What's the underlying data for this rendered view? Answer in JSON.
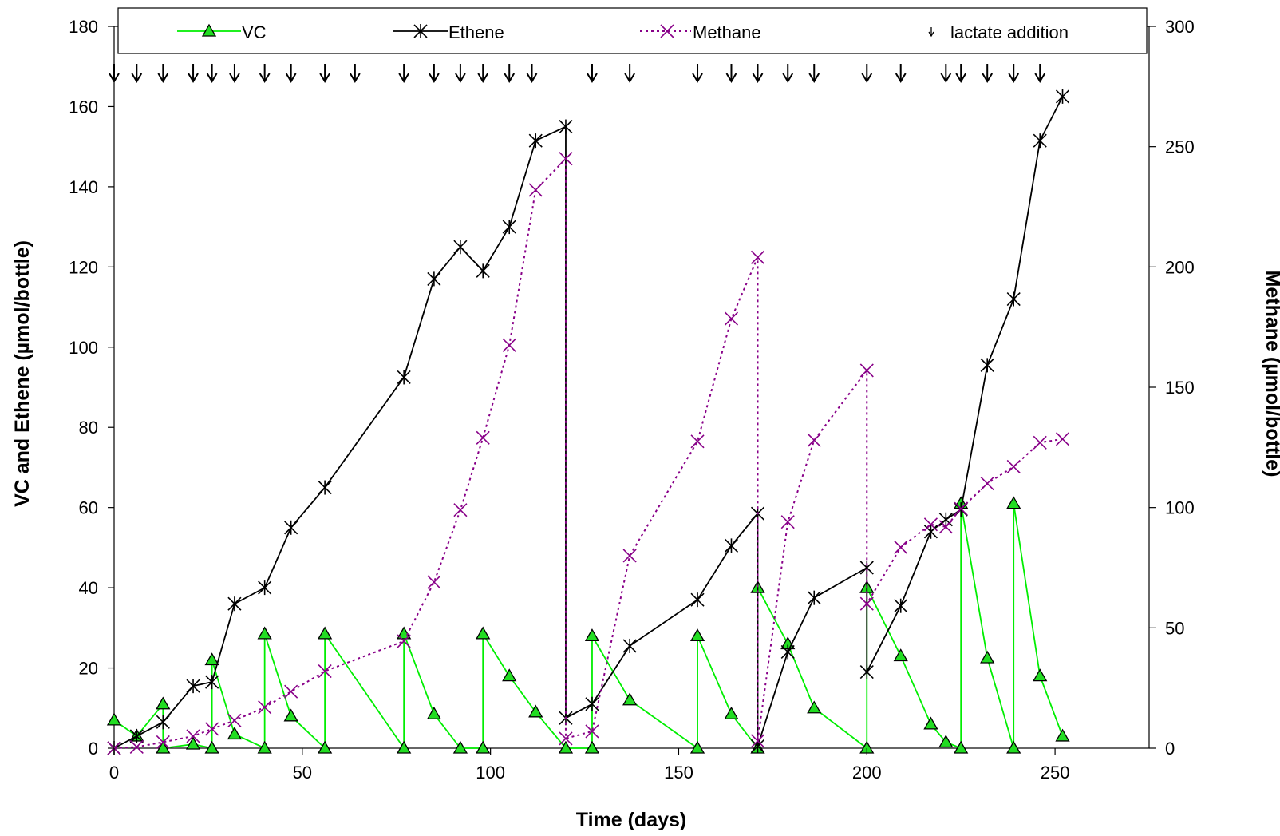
{
  "chart_data": {
    "type": "line",
    "xlabel": "Time (days)",
    "ylabel": "VC and Ethene (µmol/bottle)",
    "y2label": "Methane (µmol/bottle)",
    "xlim": [
      0,
      275
    ],
    "ylim": [
      0,
      180
    ],
    "y2lim": [
      0,
      300
    ],
    "xticks": [
      0,
      50,
      100,
      150,
      200,
      250
    ],
    "yticks": [
      0,
      20,
      40,
      60,
      80,
      100,
      120,
      140,
      160,
      180
    ],
    "y2ticks": [
      0,
      50,
      100,
      150,
      200,
      250,
      300
    ],
    "grid": false,
    "legend_position": "top",
    "series": [
      {
        "name": "VC",
        "axis": "left",
        "color": "#00ee00",
        "marker": "triangle",
        "x": [
          0,
          6,
          13,
          13,
          21,
          26,
          26,
          32,
          40,
          40,
          47,
          56,
          56,
          77,
          77,
          85,
          92,
          98,
          98,
          105,
          112,
          120,
          127,
          127,
          137,
          155,
          155,
          164,
          171,
          171,
          179,
          186,
          200,
          200,
          209,
          217,
          221,
          225,
          225,
          232,
          239,
          239,
          246,
          252
        ],
        "y": [
          7,
          3,
          11,
          0,
          1,
          0,
          22,
          3.5,
          0,
          28.5,
          8,
          0,
          28.5,
          0,
          28.5,
          8.5,
          0,
          0,
          28.5,
          18,
          9,
          0,
          0,
          28,
          12,
          0,
          28,
          8.5,
          0,
          40,
          26,
          10,
          0,
          40,
          23,
          6,
          1.5,
          0,
          61,
          22.5,
          0,
          61,
          18,
          3
        ]
      },
      {
        "name": "Ethene",
        "axis": "left",
        "color": "#000000",
        "marker": "star",
        "x": [
          0,
          6,
          13,
          21,
          26,
          32,
          40,
          47,
          56,
          77,
          85,
          92,
          98,
          105,
          112,
          120,
          120,
          127,
          137,
          155,
          164,
          171,
          171,
          179,
          186,
          200,
          200,
          209,
          217,
          221,
          225,
          232,
          239,
          246,
          252
        ],
        "y": [
          0,
          3,
          6.5,
          15.5,
          16.5,
          36,
          40,
          55,
          65,
          92.5,
          117,
          125,
          119,
          130,
          151.5,
          155,
          7.5,
          11,
          25.5,
          37,
          50.5,
          58.5,
          0.5,
          24,
          37.5,
          45,
          19,
          35.5,
          54,
          57,
          59.5,
          95.5,
          112,
          151.5,
          162.5
        ]
      },
      {
        "name": "Methane",
        "axis": "right",
        "color": "#880088",
        "marker": "x",
        "x": [
          0,
          6,
          13,
          21,
          26,
          32,
          40,
          47,
          56,
          77,
          85,
          92,
          98,
          105,
          112,
          120,
          120,
          127,
          137,
          155,
          164,
          171,
          171,
          179,
          186,
          200,
          200,
          209,
          217,
          221,
          225,
          232,
          239,
          246,
          252
        ],
        "y": [
          0,
          0.5,
          2.5,
          5,
          8,
          11.5,
          17,
          23.5,
          32,
          44.5,
          69,
          99,
          129,
          167.5,
          232,
          245,
          4,
          7,
          80,
          127.5,
          178.5,
          204,
          3,
          94,
          128,
          157,
          60,
          83.5,
          93,
          92,
          99.5,
          110,
          117,
          127,
          128.5
        ]
      }
    ],
    "lactate_addition": {
      "name": "lactate addition",
      "x": [
        0,
        6,
        13,
        21,
        26,
        32,
        40,
        47,
        56,
        64,
        77,
        85,
        92,
        98,
        105,
        111,
        127,
        137,
        155,
        164,
        171,
        179,
        186,
        200,
        209,
        221,
        225,
        232,
        239,
        246
      ]
    }
  }
}
